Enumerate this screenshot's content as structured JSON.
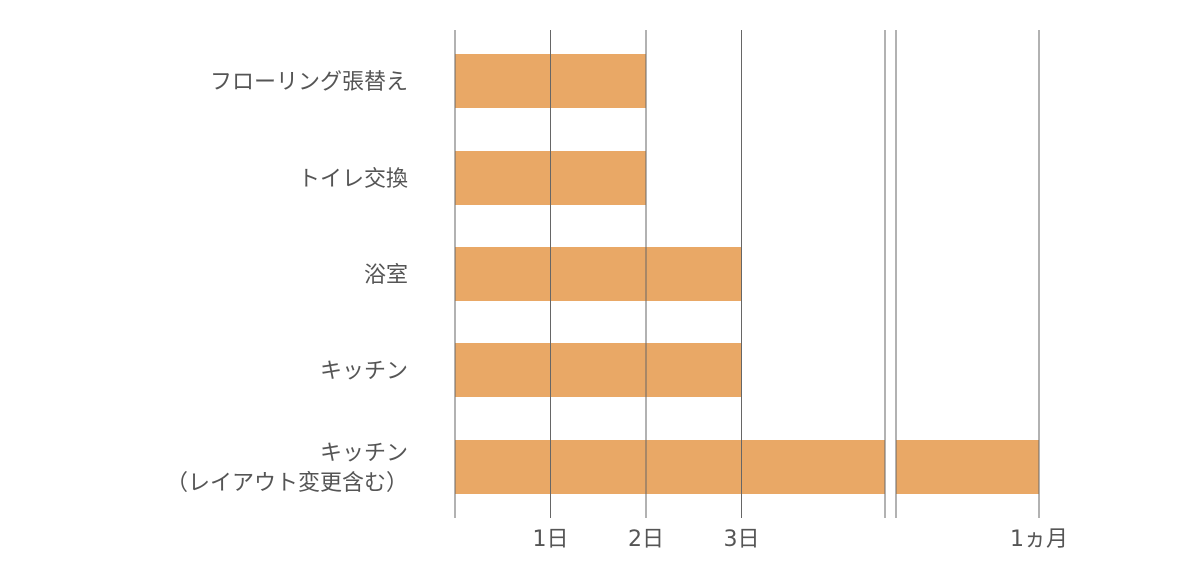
{
  "chart_data": {
    "type": "bar",
    "orientation": "horizontal",
    "title": "",
    "xlabel": "",
    "ylabel": "",
    "categories": [
      [
        "フローリング張替え"
      ],
      [
        "トイレ交換"
      ],
      [
        "浴室"
      ],
      [
        "キッチン"
      ],
      [
        "キッチン",
        "（レイアウト変更含む）"
      ]
    ],
    "values": [
      "2日",
      "2日",
      "3日",
      "3日",
      "1ヵ月"
    ],
    "x_ticks": [
      "1日",
      "2日",
      "3日",
      "1ヵ月"
    ],
    "axis_break": true,
    "grid": true,
    "legend": "none",
    "colors": {
      "bar": "#E9A866",
      "grid": "#666666",
      "text": "#555555",
      "background": "#FFFFFF"
    }
  }
}
